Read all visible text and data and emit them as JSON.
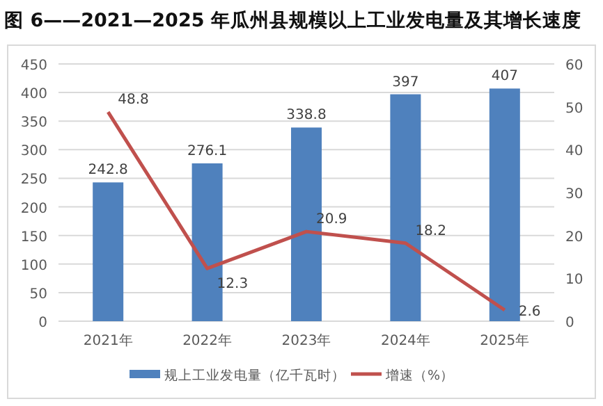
{
  "chart_data": {
    "type": "bar",
    "title": "图 6——2021—2025 年瓜州县规模以上工业发电量及其增长速度",
    "categories": [
      "2021年",
      "2022年",
      "2023年",
      "2024年",
      "2025年"
    ],
    "series": [
      {
        "name": "规上工业发电量（亿千瓦时）",
        "color": "#4f81bd",
        "values": [
          242.8,
          276.1,
          338.8,
          397,
          407
        ]
      },
      {
        "name": "增速（%）",
        "type": "line",
        "axis": "y2",
        "color": "#c0504d",
        "values": [
          48.8,
          12.3,
          20.9,
          18.2,
          2.6
        ]
      }
    ],
    "ylim": [
      0,
      450
    ],
    "yticks": [
      0,
      50,
      100,
      150,
      200,
      250,
      300,
      350,
      400,
      450
    ],
    "y2lim": [
      0,
      60
    ],
    "y2ticks": [
      0,
      10,
      20,
      30,
      40,
      50,
      60
    ],
    "grid": "y",
    "legend": "bottom",
    "data_labels": true,
    "marker": "none"
  }
}
